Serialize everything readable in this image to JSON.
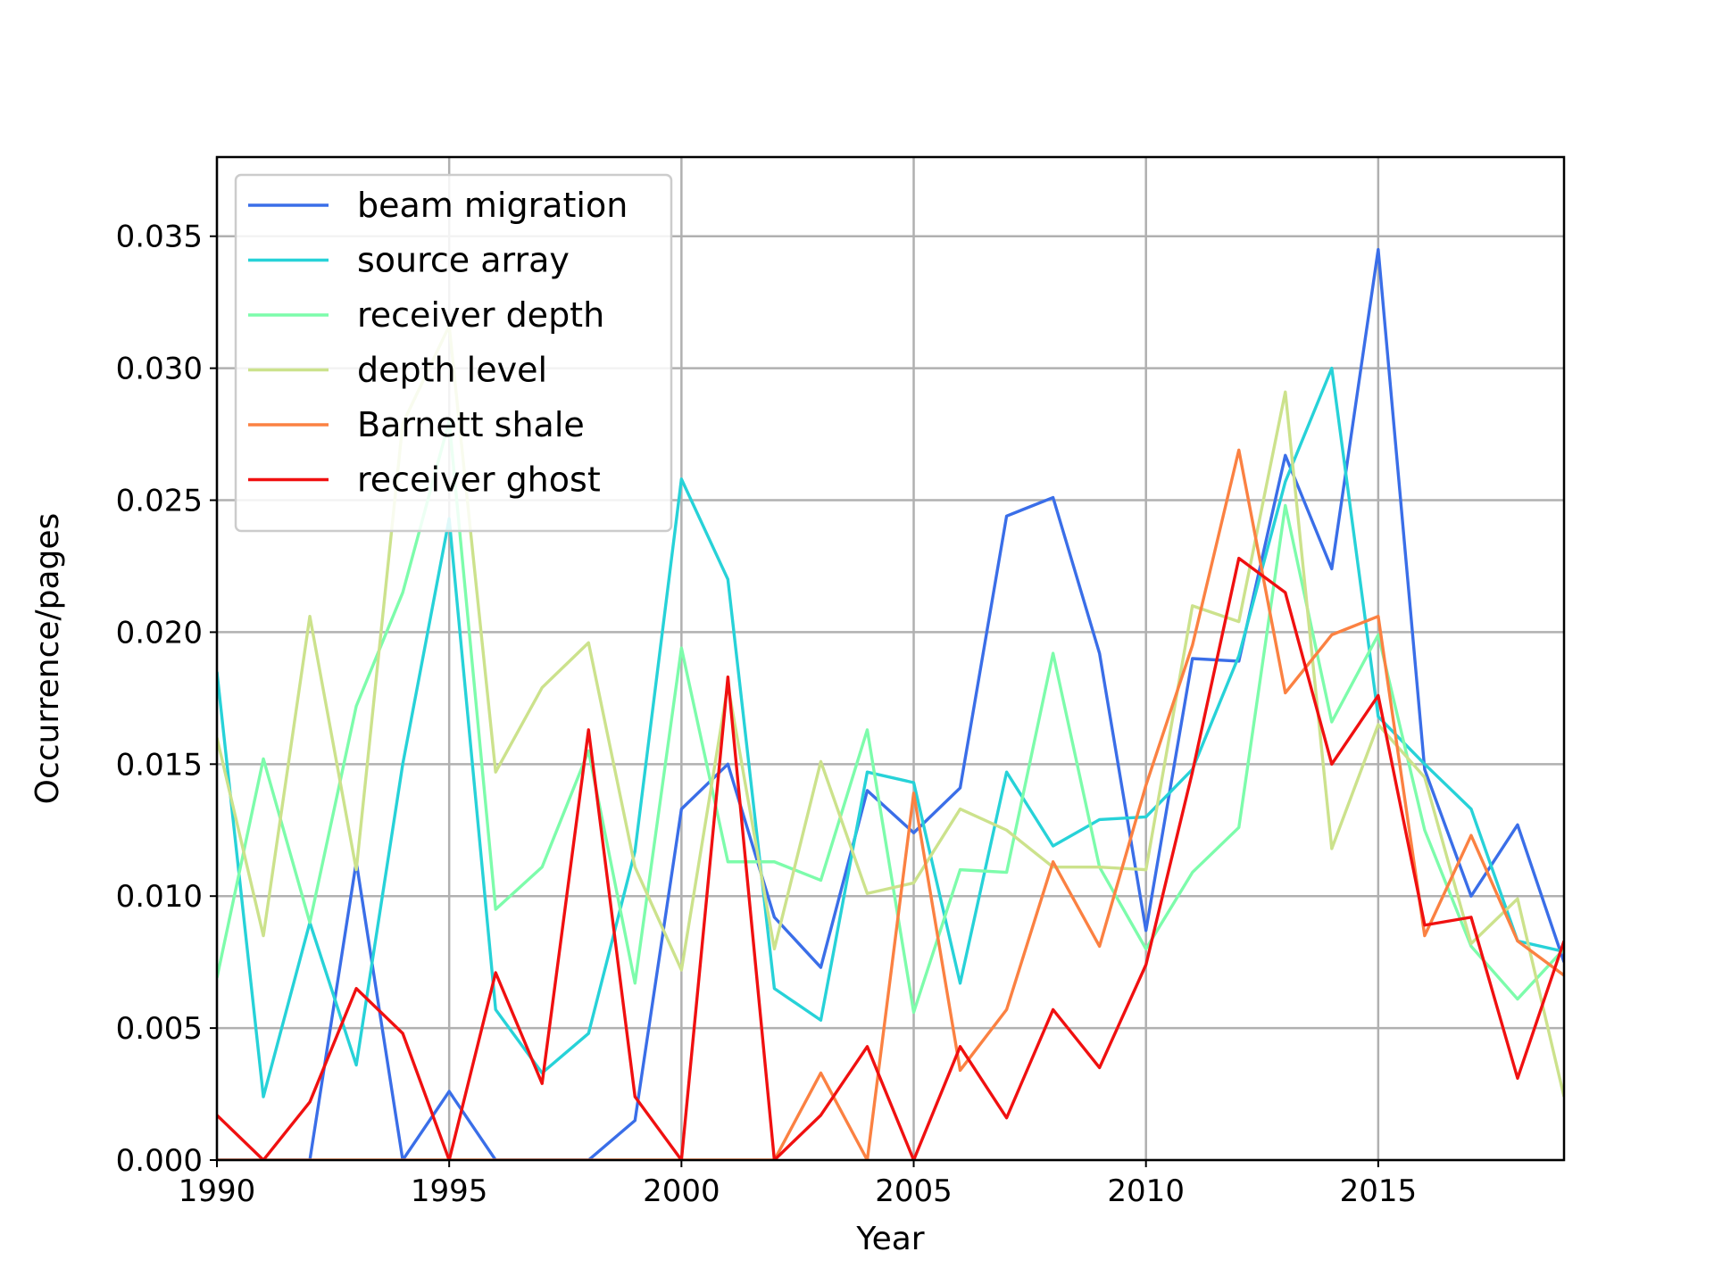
{
  "chart_data": {
    "type": "line",
    "title": "",
    "xlabel": "Year",
    "ylabel": "Occurrence/pages",
    "xlim": [
      1990,
      2019
    ],
    "ylim": [
      0,
      0.038
    ],
    "grid": true,
    "legend_position": "top-left",
    "x_ticks": [
      1990,
      1995,
      2000,
      2005,
      2010,
      2015
    ],
    "x_tick_labels": [
      "1990",
      "1995",
      "2000",
      "2005",
      "2010",
      "2015"
    ],
    "y_ticks": [
      0,
      0.005,
      0.01,
      0.015,
      0.02,
      0.025,
      0.03,
      0.035
    ],
    "y_tick_labels": [
      "0.000",
      "0.005",
      "0.010",
      "0.015",
      "0.020",
      "0.025",
      "0.030",
      "0.035"
    ],
    "x": [
      1990,
      1991,
      1992,
      1993,
      1994,
      1995,
      1996,
      1997,
      1998,
      1999,
      2000,
      2001,
      2002,
      2003,
      2004,
      2005,
      2006,
      2007,
      2008,
      2009,
      2010,
      2011,
      2012,
      2013,
      2014,
      2015,
      2016,
      2017,
      2018,
      2019
    ],
    "series": [
      {
        "name": "beam migration",
        "color": "#3a6ee8",
        "values": [
          0.0,
          0.0,
          0.0,
          0.0113,
          0.0,
          0.0026,
          0.0,
          0.0,
          0.0,
          0.0015,
          0.0133,
          0.015,
          0.0092,
          0.0073,
          0.014,
          0.0124,
          0.0141,
          0.0244,
          0.0251,
          0.0192,
          0.0087,
          0.019,
          0.0189,
          0.0267,
          0.0224,
          0.0345,
          0.0148,
          0.01,
          0.0127,
          0.0075
        ]
      },
      {
        "name": "source array",
        "color": "#27d2d8",
        "values": [
          0.0185,
          0.0024,
          0.009,
          0.0036,
          0.015,
          0.0243,
          0.0057,
          0.0033,
          0.0048,
          0.0117,
          0.0258,
          0.022,
          0.0065,
          0.0053,
          0.0147,
          0.0143,
          0.0067,
          0.0147,
          0.0119,
          0.0129,
          0.013,
          0.0148,
          0.0191,
          0.0257,
          0.03,
          0.0168,
          0.015,
          0.0133,
          0.0083,
          0.0079
        ]
      },
      {
        "name": "receiver depth",
        "color": "#7dfcab",
        "values": [
          0.0069,
          0.0152,
          0.009,
          0.0172,
          0.0215,
          0.028,
          0.0095,
          0.0111,
          0.0155,
          0.0067,
          0.0194,
          0.0113,
          0.0113,
          0.0106,
          0.0163,
          0.0056,
          0.011,
          0.0109,
          0.0192,
          0.0111,
          0.008,
          0.0109,
          0.0126,
          0.0248,
          0.0166,
          0.0199,
          0.0125,
          0.0081,
          0.0061,
          0.008
        ]
      },
      {
        "name": "depth level",
        "color": "#cce28c",
        "values": [
          0.016,
          0.0085,
          0.0206,
          0.011,
          0.0279,
          0.0316,
          0.0147,
          0.0179,
          0.0196,
          0.0111,
          0.0072,
          0.018,
          0.008,
          0.0151,
          0.0101,
          0.0105,
          0.0133,
          0.0125,
          0.0111,
          0.0111,
          0.011,
          0.021,
          0.0204,
          0.0291,
          0.0118,
          0.0165,
          0.0145,
          0.0082,
          0.0099,
          0.0024
        ]
      },
      {
        "name": "Barnett shale",
        "color": "#fb8142",
        "values": [
          0.0,
          0.0,
          0.0,
          0.0,
          0.0,
          0.0,
          0.0,
          0.0,
          0.0,
          0.0,
          0.0,
          0.0,
          0.0,
          0.0033,
          0.0,
          0.0139,
          0.0034,
          0.0057,
          0.0113,
          0.0081,
          0.0142,
          0.0195,
          0.0269,
          0.0177,
          0.0199,
          0.0206,
          0.0085,
          0.0123,
          0.0083,
          0.007
        ]
      },
      {
        "name": "receiver ghost",
        "color": "#f01010",
        "values": [
          0.0017,
          0.0,
          0.0022,
          0.0065,
          0.0048,
          0.0,
          0.0071,
          0.0029,
          0.0163,
          0.0024,
          0.0,
          0.0183,
          0.0,
          0.0017,
          0.0043,
          0.0,
          0.0043,
          0.0016,
          0.0057,
          0.0035,
          0.0074,
          0.0147,
          0.0228,
          0.0215,
          0.015,
          0.0176,
          0.0089,
          0.0092,
          0.0031,
          0.0083
        ]
      }
    ]
  }
}
